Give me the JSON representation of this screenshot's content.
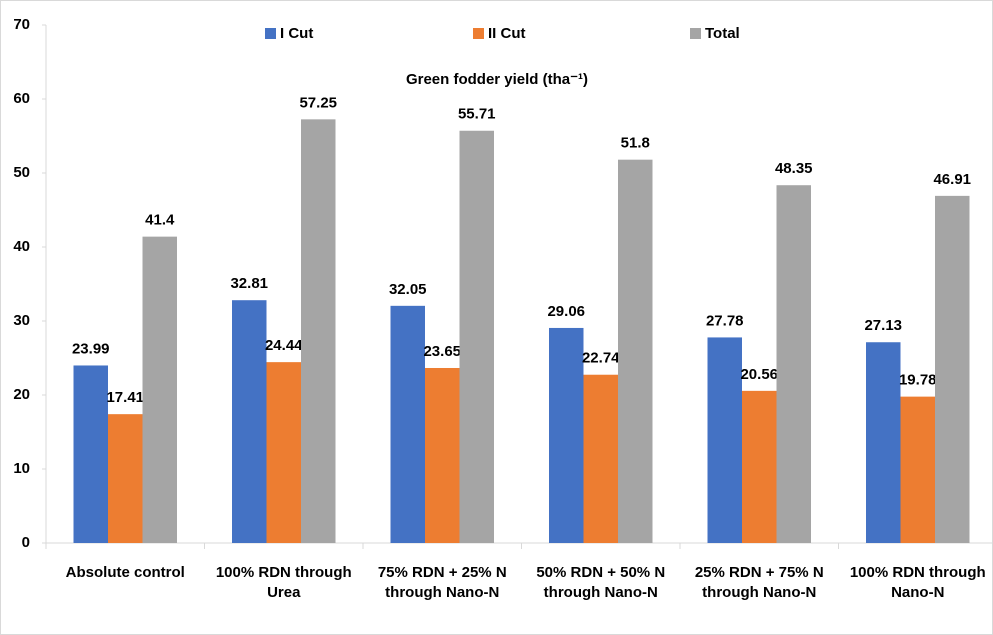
{
  "chart_data": {
    "type": "bar",
    "title": "Green fodder yield (tha⁻¹)",
    "categories": [
      "Absolute control",
      "100% RDN through Urea",
      "75% RDN + 25% N through Nano-N",
      "50% RDN + 50% N through Nano-N",
      "25% RDN + 75% N through Nano-N",
      "100% RDN through Nano-N"
    ],
    "series": [
      {
        "name": "I Cut",
        "color": "#4472c4",
        "values": [
          23.99,
          32.81,
          32.05,
          29.06,
          27.78,
          27.13
        ]
      },
      {
        "name": "II Cut",
        "color": "#ed7d31",
        "values": [
          17.41,
          24.44,
          23.65,
          22.74,
          20.56,
          19.78
        ]
      },
      {
        "name": "Total",
        "color": "#a5a5a5",
        "values": [
          41.4,
          57.25,
          55.71,
          51.8,
          48.35,
          46.91
        ]
      }
    ],
    "ylim": [
      0,
      70
    ],
    "yticks": [
      0,
      10,
      20,
      30,
      40,
      50,
      60,
      70
    ],
    "grid": false,
    "legend": "top"
  }
}
